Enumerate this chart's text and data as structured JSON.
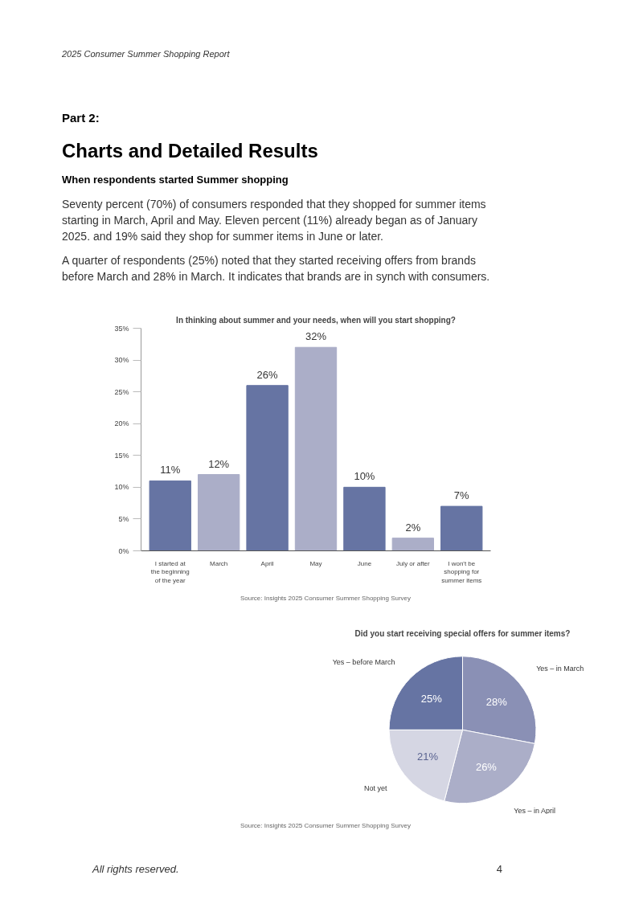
{
  "chart_data": [
    {
      "type": "bar",
      "title": "In thinking about summer and your needs, when will you start shopping?",
      "annotations": [
        "2025 Consumer Summer Shopping Report",
        "Part 2:",
        "Charts and Detailed Results",
        "When respondents started Summer shopping",
        "Seventy percent (70%) of consumers responded that they shopped for summer items starting in March, April and May. Eleven percent (11%) already began as of January 2025. and 19% said they shop for summer items in June or later.",
        "A quarter of respondents (25%) noted that they started receiving offers from brands before March and 28% in March.  It indicates that brands are in synch with consumers.",
        "Source: Insights 2025 Consumer Summer Shopping Survey"
      ],
      "categories": [
        "I started at the beginning of the year",
        "March",
        "April",
        "May",
        "June",
        "July or after",
        "I won't be shopping for summer items"
      ],
      "values": [
        11,
        12,
        26,
        32,
        10,
        2,
        7
      ],
      "value_labels": [
        "11%",
        "12%",
        "26%",
        "32%",
        "10%",
        "2%",
        "7%"
      ],
      "colors": [
        "#6674a3",
        "#abaec8",
        "#6674a3",
        "#abaec8",
        "#6674a3",
        "#abaec8",
        "#6674a3"
      ],
      "ylim": [
        0,
        35
      ],
      "yticks": [
        {
          "value": 0,
          "label": "0%"
        },
        {
          "value": 5,
          "label": "5%"
        },
        {
          "value": 10,
          "label": "10%"
        },
        {
          "value": 15,
          "label": "15%"
        },
        {
          "value": 20,
          "label": "20%"
        },
        {
          "value": 25,
          "label": "25%"
        },
        {
          "value": 30,
          "label": "30%"
        },
        {
          "value": 35,
          "label": "35%"
        }
      ],
      "grid": false,
      "legend": false
    },
    {
      "type": "pie",
      "title": "Did you start receiving special offers for summer items?",
      "categories": [
        "Yes – in March",
        "Yes – in April",
        "Not yet",
        "Yes – before March"
      ],
      "values": [
        28,
        26,
        21,
        25
      ],
      "value_labels": [
        "28%",
        "26%",
        "21%",
        "25%"
      ],
      "colors": [
        "#8a90b5",
        "#abaec8",
        "#d5d6e3",
        "#6674a3"
      ],
      "annotations": [
        "Source: Insights 2025 Consumer Summer Shopping Survey",
        "All rights reserved.",
        "4"
      ],
      "legend": false
    }
  ]
}
